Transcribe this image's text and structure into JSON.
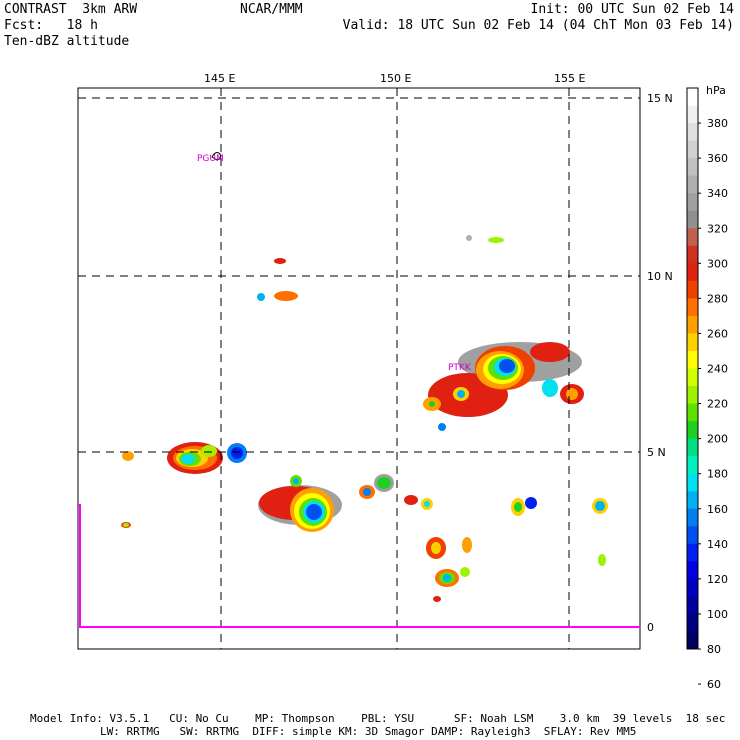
{
  "header": {
    "left_line1": "CONTRAST  3km ARW",
    "left_line2": "Fcst:   18 h",
    "left_line3": "Ten-dBZ altitude",
    "center_line1": "NCAR/MMM",
    "right_line1": "Init: 00 UTC Sun 02 Feb 14",
    "right_line2": "Valid: 18 UTC Sun 02 Feb 14 (04 ChT Mon 03 Feb 14)"
  },
  "map": {
    "lon_labels": [
      "145 E",
      "150 E",
      "155 E"
    ],
    "lat_labels": [
      "15 N",
      "10 N",
      "5 N",
      "0"
    ],
    "stations": [
      "PGUM",
      "PTKK"
    ]
  },
  "colorbar": {
    "unit": "hPa",
    "ticks": [
      "380",
      "360",
      "340",
      "320",
      "300",
      "280",
      "260",
      "240",
      "220",
      "200",
      "180",
      "160",
      "140",
      "120",
      "100",
      "80",
      "60"
    ],
    "colors": [
      "#ffffff",
      "#f0f0f0",
      "#e0e0e0",
      "#d0d0d0",
      "#c0c0c0",
      "#b0b0b0",
      "#a0a0a0",
      "#909090",
      "#c06050",
      "#d03020",
      "#e02010",
      "#f04000",
      "#ff7000",
      "#ffa000",
      "#ffd000",
      "#ffff00",
      "#d0ff00",
      "#a0f000",
      "#60e000",
      "#20d020",
      "#00e080",
      "#00f0c0",
      "#00e0f0",
      "#00b0f0",
      "#0080f0",
      "#0050f0",
      "#0020f0",
      "#0000e0",
      "#0000c0",
      "#0000a0",
      "#000080",
      "#000060"
    ]
  },
  "footer": {
    "line1": "Model Info: V3.5.1   CU: No Cu    MP: Thompson    PBL: YSU      SF: Noah LSM    3.0 km  39 levels  18 sec",
    "line2": "LW: RRTMG   SW: RRTMG  DIFF: simple KM: 3D Smagor DAMP: Rayleigh3  SFLAY: Rev MM5"
  }
}
